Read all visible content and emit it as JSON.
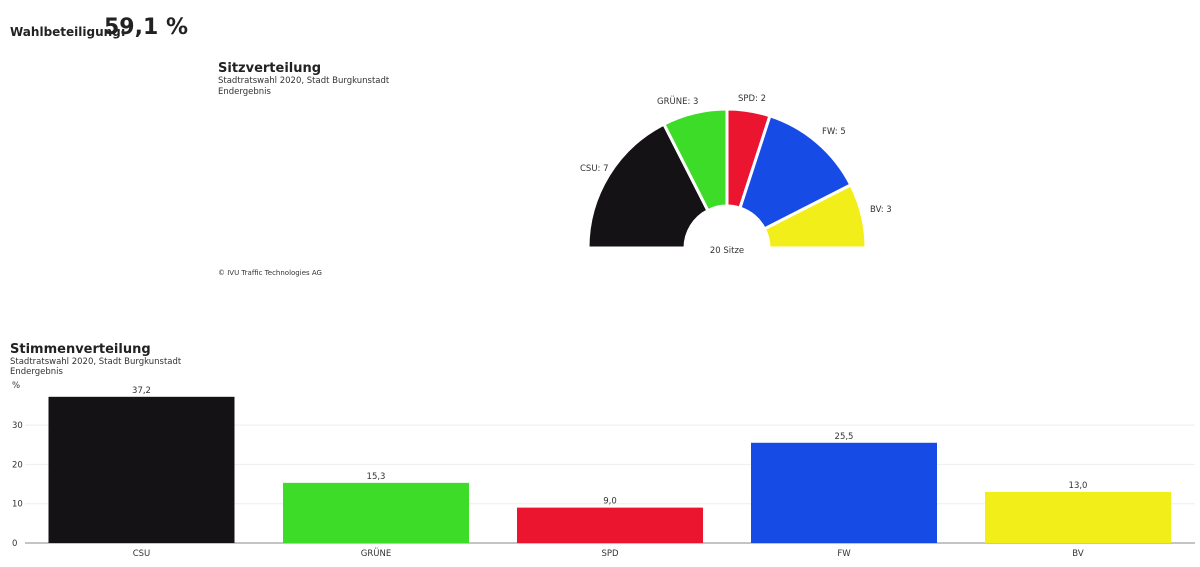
{
  "turnout": {
    "label": "Wahlbeteiligung:",
    "value": "59,1 %"
  },
  "seats_panel": {
    "title": "Sitzverteilung",
    "subtitle": "Stadtratswahl 2020, Stadt Burgkunstadt",
    "status": "Endergebnis",
    "copyright": "© IVU Traffic Technologies AG"
  },
  "votes_panel": {
    "title": "Stimmenverteilung",
    "subtitle": "Stadtratswahl 2020, Stadt Burgkunstadt",
    "status": "Endergebnis"
  },
  "chart_data": [
    {
      "type": "pie",
      "variant": "semicircle",
      "center_label": "20 Sitze",
      "categories": [
        "CSU",
        "GRÜNE",
        "SPD",
        "FW",
        "BV"
      ],
      "values": [
        7,
        3,
        2,
        5,
        3
      ],
      "labels": [
        "CSU: 7",
        "GRÜNE: 3",
        "SPD: 2",
        "FW: 5",
        "BV: 3"
      ],
      "colors": [
        "#141214",
        "#3cdc28",
        "#ec1530",
        "#164be6",
        "#f2ee19"
      ]
    },
    {
      "type": "bar",
      "categories": [
        "CSU",
        "GRÜNE",
        "SPD",
        "FW",
        "BV"
      ],
      "values": [
        37.2,
        15.3,
        9.0,
        25.5,
        13.0
      ],
      "value_labels": [
        "37,2",
        "15,3",
        "9,0",
        "25,5",
        "13,0"
      ],
      "colors": [
        "#141214",
        "#3cdc28",
        "#ec1530",
        "#164be6",
        "#f2ee19"
      ],
      "ylabel": "%",
      "yticks": [
        0,
        10,
        20,
        30
      ],
      "ylim": [
        0,
        40
      ],
      "grid": true
    }
  ]
}
